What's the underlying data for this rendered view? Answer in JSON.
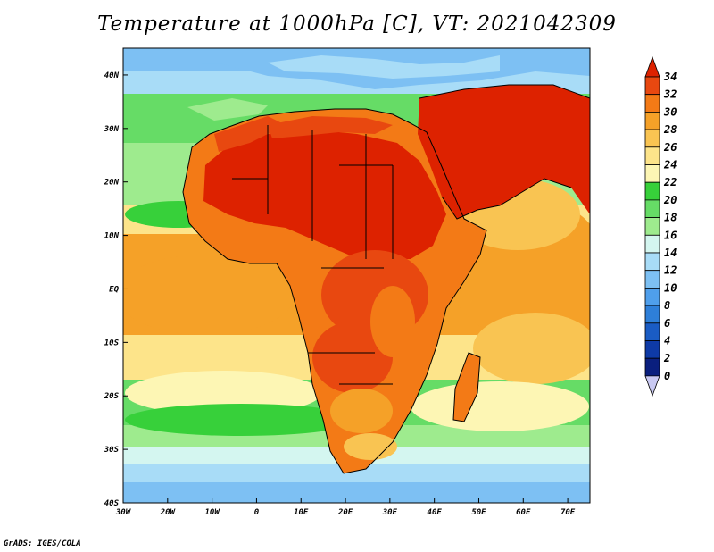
{
  "title": "Temperature at 1000hPa [C], VT: 2021042309",
  "credit": "GrADS: IGES/COLA",
  "map": {
    "lon_labels": [
      "30W",
      "20W",
      "10W",
      "0",
      "10E",
      "20E",
      "30E",
      "40E",
      "50E",
      "60E",
      "70E"
    ],
    "lat_labels": [
      "40N",
      "30N",
      "20N",
      "10N",
      "EQ",
      "10S",
      "20S",
      "30S",
      "40S"
    ],
    "lon_range": [
      -30,
      75
    ],
    "lat_range": [
      -40,
      45
    ],
    "variable": "temperature",
    "level": "1000hPa",
    "units": "C",
    "valid_time": "2021042309"
  },
  "colorbar": {
    "labels": [
      "34",
      "32",
      "30",
      "28",
      "26",
      "24",
      "22",
      "20",
      "18",
      "16",
      "14",
      "12",
      "10",
      "8",
      "6",
      "4",
      "2",
      "0"
    ],
    "colors": [
      "#dd2200",
      "#e84810",
      "#f37a16",
      "#f5a128",
      "#f9c452",
      "#fde48a",
      "#fdf6b4",
      "#37d03a",
      "#66dc66",
      "#9eeb8e",
      "#d4f6f0",
      "#a8dcf7",
      "#7dc0f3",
      "#4f9fec",
      "#2e7fd9",
      "#1a5cc4",
      "#0e3aa6",
      "#0a1f7e",
      "#c9c9f2"
    ]
  },
  "colors": {
    "ocean_warm": "#f5a128",
    "land_hot": "#dd2200",
    "ocean_cool": "#66dc66",
    "ocean_cold": "#7dc0f3"
  }
}
